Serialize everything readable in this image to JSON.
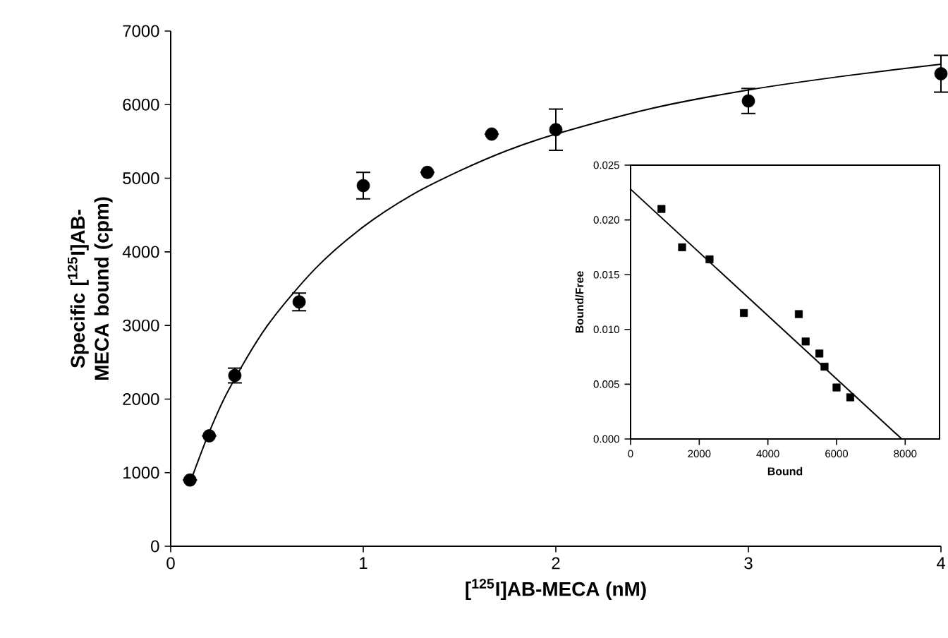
{
  "chart_data": [
    {
      "type": "scatter",
      "xlabel": "[$^{125}$I]AB-MECA (nM)",
      "ylabel": "Specific [$^{125}$I]AB-MECA bound (cpm)",
      "xlim": [
        0,
        4
      ],
      "ylim": [
        0,
        7000
      ],
      "xticks": [
        0,
        1,
        2,
        3,
        4
      ],
      "yticks": [
        0,
        1000,
        2000,
        3000,
        4000,
        5000,
        6000,
        7000
      ],
      "series": [
        {
          "marker": "circle",
          "color": "#000000",
          "x": [
            0.1,
            0.2,
            0.333,
            0.667,
            1,
            1.333,
            1.667,
            2,
            3,
            4
          ],
          "values": [
            900,
            1500,
            2320,
            3320,
            4900,
            5080,
            5600,
            5660,
            6050,
            6420
          ],
          "errors": [
            null,
            null,
            100,
            120,
            180,
            null,
            null,
            280,
            170,
            250
          ]
        },
        {
          "type": "line",
          "marker": "none",
          "color": "#000000",
          "line_style": "solid",
          "x": [
            0.1,
            0.2,
            0.3,
            0.5,
            0.75,
            1,
            1.25,
            1.5,
            1.75,
            2,
            2.5,
            3,
            3.5,
            4
          ],
          "values": [
            860,
            1550,
            2120,
            2990,
            3770,
            4340,
            4770,
            5100,
            5380,
            5600,
            5950,
            6200,
            6390,
            6550
          ]
        }
      ]
    },
    {
      "type": "scatter",
      "xlabel": "Bound",
      "ylabel": "Bound/Free",
      "xlim": [
        0,
        9000
      ],
      "ylim": [
        0,
        0.025
      ],
      "xticks": [
        0,
        2000,
        4000,
        6000,
        8000
      ],
      "yticks": [
        {
          "value": 0,
          "label": "0.000"
        },
        {
          "value": 0.005,
          "label": "0.005"
        },
        {
          "value": 0.01,
          "label": "0.010"
        },
        {
          "value": 0.015,
          "label": "0.015"
        },
        {
          "value": 0.02,
          "label": "0.020"
        },
        {
          "value": 0.025,
          "label": "0.025"
        }
      ],
      "series": [
        {
          "marker": "square",
          "color": "#000000",
          "x": [
            900,
            1500,
            2300,
            3300,
            4900,
            5100,
            5500,
            5650,
            6000,
            6400
          ],
          "values": [
            0.021,
            0.0175,
            0.0164,
            0.0115,
            0.0114,
            0.0089,
            0.0078,
            0.0066,
            0.0047,
            0.0038
          ]
        },
        {
          "type": "line",
          "marker": "none",
          "color": "#000000",
          "line_style": "solid",
          "x": [
            0,
            7900
          ],
          "values": [
            0.0228,
            0
          ]
        }
      ]
    }
  ]
}
